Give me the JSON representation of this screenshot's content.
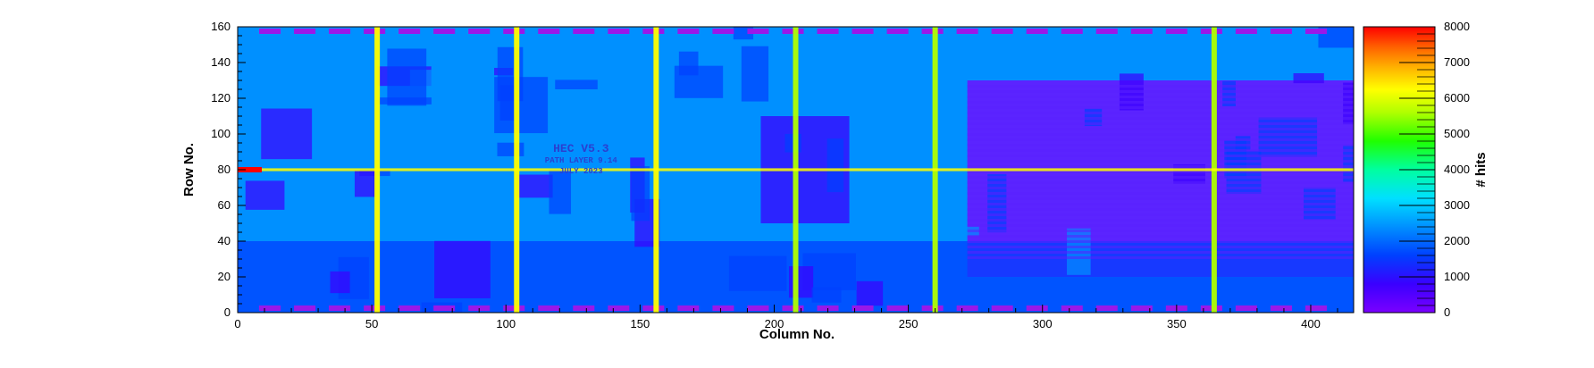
{
  "chart_data": {
    "type": "heatmap",
    "title": "",
    "xlabel": "Column No.",
    "ylabel": "Row No.",
    "zlabel": "# hits",
    "xlim": [
      0,
      416
    ],
    "ylim": [
      0,
      160
    ],
    "zlim": [
      0,
      8000
    ],
    "x_ticks": [
      0,
      50,
      100,
      150,
      200,
      250,
      300,
      350,
      400
    ],
    "y_ticks": [
      0,
      20,
      40,
      60,
      80,
      100,
      120,
      140,
      160
    ],
    "z_ticks": [
      0,
      1000,
      2000,
      3000,
      4000,
      5000,
      6000,
      7000,
      8000
    ],
    "background_hits": 2400,
    "bright_columns": [
      {
        "x": 52,
        "hits": 5800
      },
      {
        "x": 104,
        "hits": 5800
      },
      {
        "x": 156,
        "hits": 5800
      },
      {
        "x": 208,
        "hits": 5200
      },
      {
        "x": 260,
        "hits": 5000
      },
      {
        "x": 364,
        "hits": 4800
      }
    ],
    "bright_row": {
      "y": 80,
      "hits": 5600
    },
    "hot_spot": {
      "x": 4,
      "y": 80,
      "hits": 8000
    },
    "low_regions": [
      {
        "x": [
          272,
          416
        ],
        "y": [
          20,
          130
        ],
        "hits": 300
      },
      {
        "x": [
          195,
          228
        ],
        "y": [
          50,
          110
        ],
        "hits": 900
      },
      {
        "x": [
          0,
          416
        ],
        "y": [
          40,
          0
        ],
        "hits": 1300
      }
    ],
    "chip_text": [
      "HEC V5.3",
      "PATH LAYER 9.14",
      "JULY 2023"
    ],
    "colorscale": [
      "#7a00ff",
      "#3a00ff",
      "#0040ff",
      "#0090ff",
      "#00e0ff",
      "#00ffa0",
      "#20ff00",
      "#b0ff00",
      "#ffff00",
      "#ffb000",
      "#ff6000",
      "#ff0000"
    ]
  }
}
